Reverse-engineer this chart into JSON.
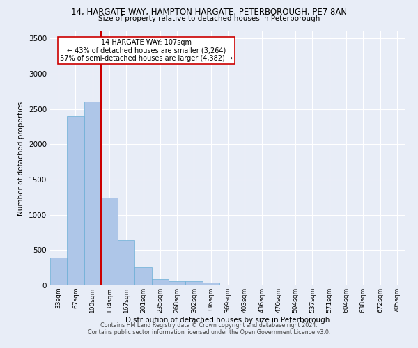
{
  "title": "14, HARGATE WAY, HAMPTON HARGATE, PETERBOROUGH, PE7 8AN",
  "subtitle": "Size of property relative to detached houses in Peterborough",
  "xlabel": "Distribution of detached houses by size in Peterborough",
  "ylabel": "Number of detached properties",
  "categories": [
    "33sqm",
    "67sqm",
    "100sqm",
    "134sqm",
    "167sqm",
    "201sqm",
    "235sqm",
    "268sqm",
    "302sqm",
    "336sqm",
    "369sqm",
    "403sqm",
    "436sqm",
    "470sqm",
    "504sqm",
    "537sqm",
    "571sqm",
    "604sqm",
    "638sqm",
    "672sqm",
    "705sqm"
  ],
  "values": [
    390,
    2400,
    2600,
    1240,
    640,
    255,
    90,
    60,
    60,
    40,
    0,
    0,
    0,
    0,
    0,
    0,
    0,
    0,
    0,
    0,
    0
  ],
  "bar_color": "#aec6e8",
  "bar_edgecolor": "#6aaed6",
  "background_color": "#e8edf7",
  "grid_color": "#ffffff",
  "annotation_box_text_line1": "14 HARGATE WAY: 107sqm",
  "annotation_box_text_line2": "← 43% of detached houses are smaller (3,264)",
  "annotation_box_text_line3": "57% of semi-detached houses are larger (4,382) →",
  "vline_x_index": 2,
  "vline_color": "#cc0000",
  "ylim": [
    0,
    3600
  ],
  "yticks": [
    0,
    500,
    1000,
    1500,
    2000,
    2500,
    3000,
    3500
  ],
  "footnote1": "Contains HM Land Registry data © Crown copyright and database right 2024.",
  "footnote2": "Contains public sector information licensed under the Open Government Licence v3.0."
}
